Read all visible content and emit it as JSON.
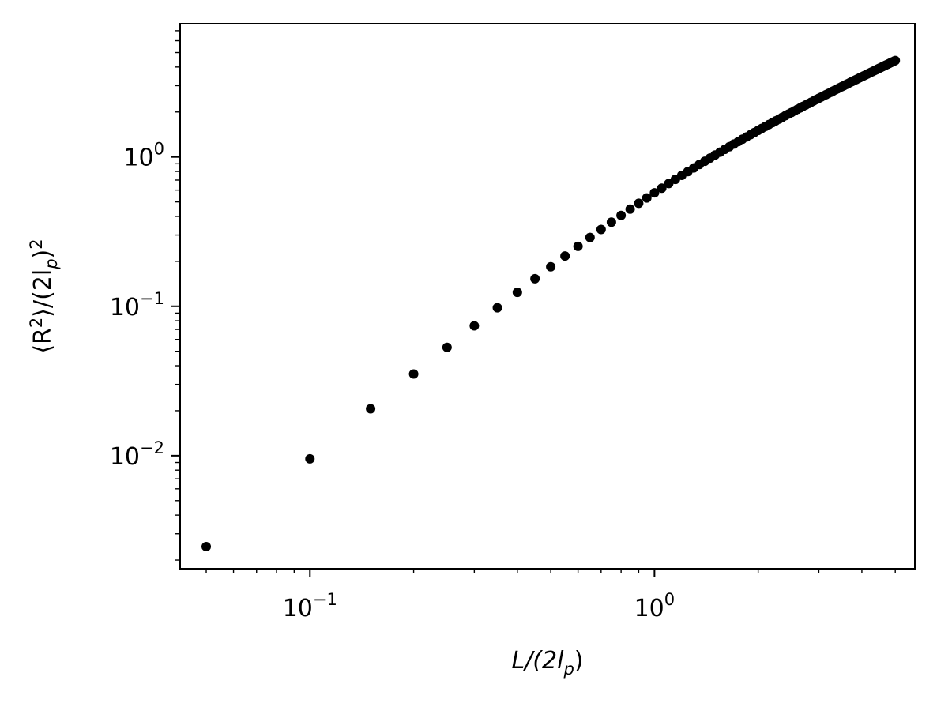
{
  "chart_data": {
    "type": "scatter",
    "x_scale": "log",
    "y_scale": "log",
    "xlabel": {
      "main": "L/(2l",
      "sub": "p",
      "close": ")"
    },
    "ylabel": {
      "open": "⟨R",
      "sup1": "2",
      "mid": "⟩/(2l",
      "sub": "p",
      "close": ")",
      "sup2": "2"
    },
    "xlim": [
      0.042,
      5.7
    ],
    "ylim": [
      0.00175,
      7.8
    ],
    "x_ticks": [
      {
        "value": 0.1,
        "base": "10",
        "exp": "−1"
      },
      {
        "value": 1,
        "base": "10",
        "exp": "0"
      }
    ],
    "y_ticks": [
      {
        "value": 0.01,
        "base": "10",
        "exp": "−2"
      },
      {
        "value": 0.1,
        "base": "10",
        "exp": "−1"
      },
      {
        "value": 1,
        "base": "10",
        "exp": "0"
      }
    ],
    "marker_color": "#000000",
    "points": {
      "x": [
        0.05,
        0.1,
        0.15,
        0.2,
        0.25,
        0.3,
        0.35,
        0.4,
        0.45,
        0.5,
        0.55,
        0.6,
        0.65,
        0.7,
        0.75,
        0.8,
        0.85,
        0.9,
        0.95,
        1.0,
        1.05,
        1.1,
        1.15,
        1.2,
        1.25,
        1.3,
        1.35,
        1.4,
        1.45,
        1.5,
        1.55,
        1.6,
        1.65,
        1.7,
        1.75,
        1.8,
        1.85,
        1.9,
        1.95,
        2.0,
        2.05,
        2.1,
        2.15,
        2.2,
        2.25,
        2.3,
        2.35,
        2.4,
        2.45,
        2.5,
        2.55,
        2.6,
        2.65,
        2.7,
        2.75,
        2.8,
        2.85,
        2.9,
        2.95,
        3.0,
        3.05,
        3.1,
        3.15,
        3.2,
        3.25,
        3.3,
        3.35,
        3.4,
        3.45,
        3.5,
        3.55,
        3.6,
        3.65,
        3.7,
        3.75,
        3.8,
        3.85,
        3.9,
        3.95,
        4.0,
        4.05,
        4.1,
        4.15,
        4.2,
        4.25,
        4.3,
        4.35,
        4.4,
        4.45,
        4.5,
        4.55,
        4.6,
        4.65,
        4.7,
        4.75,
        4.8,
        4.85,
        4.9,
        4.95,
        5.0
      ],
      "y": [
        0.00246,
        0.00952,
        0.0206,
        0.0352,
        0.0531,
        0.074,
        0.0978,
        0.124,
        0.153,
        0.184,
        0.217,
        0.252,
        0.289,
        0.327,
        0.366,
        0.406,
        0.447,
        0.489,
        0.531,
        0.575,
        0.618,
        0.663,
        0.707,
        0.753,
        0.798,
        0.844,
        0.89,
        0.936,
        0.983,
        1.03,
        1.077,
        1.124,
        1.171,
        1.219,
        1.266,
        1.314,
        1.361,
        1.409,
        1.457,
        1.505,
        1.553,
        1.601,
        1.649,
        1.697,
        1.745,
        1.793,
        1.842,
        1.89,
        1.938,
        1.986,
        2.035,
        2.083,
        2.131,
        2.18,
        2.228,
        2.277,
        2.325,
        2.374,
        2.422,
        2.471,
        2.519,
        2.568,
        2.616,
        2.665,
        2.713,
        2.762,
        2.811,
        2.859,
        2.908,
        2.957,
        3.005,
        3.054,
        3.103,
        3.151,
        3.2,
        3.249,
        3.297,
        3.346,
        3.395,
        3.444,
        3.492,
        3.541,
        3.59,
        3.639,
        3.687,
        3.736,
        3.785,
        3.834,
        3.882,
        3.931,
        3.98,
        4.029,
        4.078,
        4.126,
        4.175,
        4.224,
        4.273,
        4.322,
        4.37,
        4.419
      ]
    }
  }
}
